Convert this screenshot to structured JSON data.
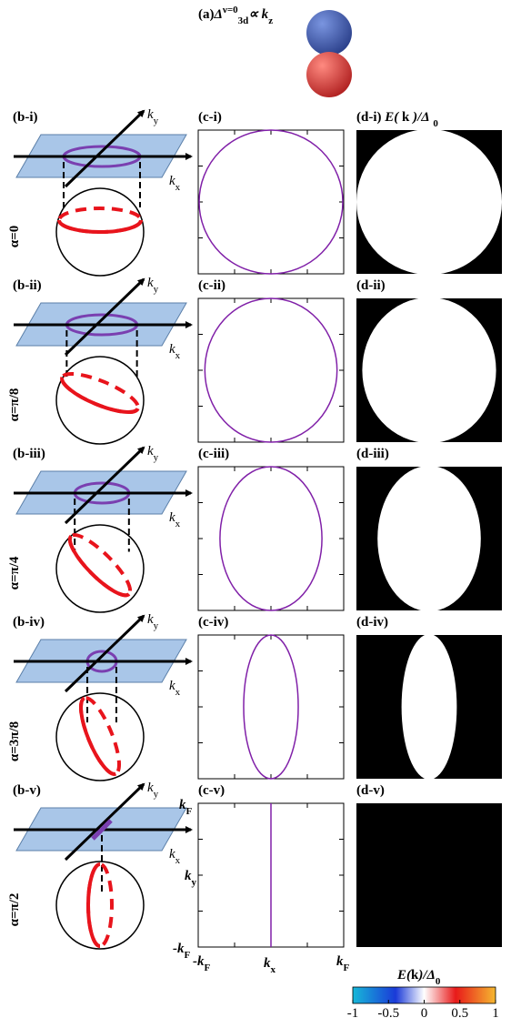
{
  "header": {
    "label": "(a)",
    "delta": "Δ",
    "sup": "ν=0",
    "sub": "3d",
    "rel": "∝ k",
    "rel_sub": "z"
  },
  "sketch_axes": {
    "k": "k",
    "y": "y",
    "x": "x"
  },
  "energy_label": {
    "e": "E(",
    "k": "k",
    "rest": ")/Δ",
    "sub": "0"
  },
  "rows": [
    {
      "b": "(b-i)",
      "alpha": "α=0",
      "c": "(c-i)",
      "d": "(d-i)"
    },
    {
      "b": "(b-ii)",
      "alpha": "α=π/8",
      "c": "(c-ii)",
      "d": "(d-ii)"
    },
    {
      "b": "(b-iii)",
      "alpha": "α=π/4",
      "c": "(c-iii)",
      "d": "(d-iii)"
    },
    {
      "b": "(b-iv)",
      "alpha": "α=3π/8",
      "c": "(c-iv)",
      "d": "(d-iv)"
    },
    {
      "b": "(b-v)",
      "alpha": "α=π/2",
      "c": "(c-v)",
      "d": "(d-v)"
    }
  ],
  "axis_labels": {
    "k": "k",
    "minus_k": "-k",
    "F": "F",
    "x": "x",
    "y": "y"
  },
  "colorbar": {
    "ticks": [
      -1,
      -0.5,
      0,
      0.5,
      1
    ]
  }
}
